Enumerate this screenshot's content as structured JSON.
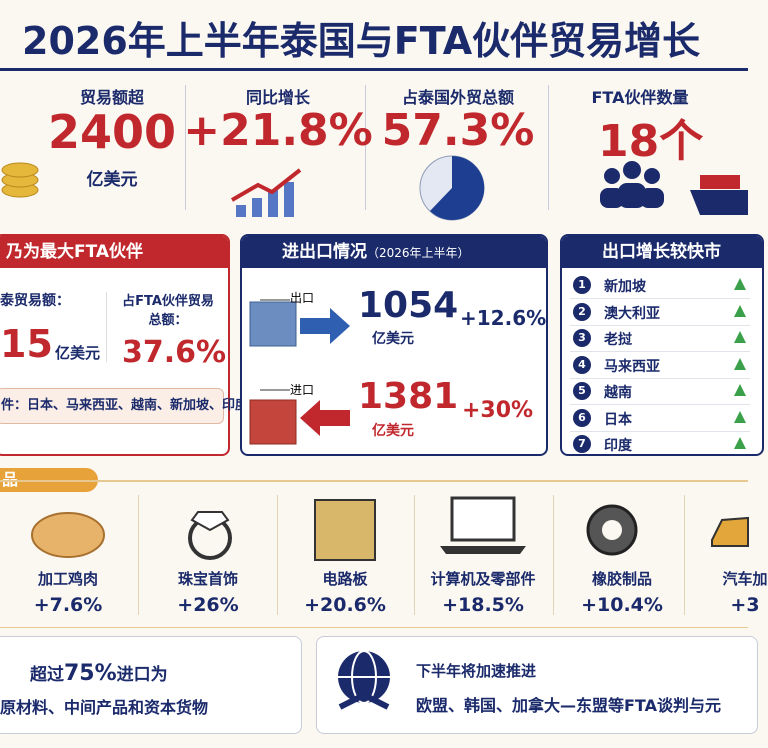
{
  "header": {
    "title": "2026年上半年泰国与FTA伙伴贸易增长"
  },
  "stats": [
    {
      "label": "贸易额超",
      "value": "2400",
      "unit": "亿美元"
    },
    {
      "label": "同比增长",
      "value": "+21.8%"
    },
    {
      "label": "占泰国外贸总额",
      "value": "57.3%"
    },
    {
      "label": "FTA伙伴数量",
      "value": "18个"
    }
  ],
  "partner_panel": {
    "title": "乃为最大FTA伙伴",
    "trade_label": "泰贸易额：",
    "trade_value": "15",
    "trade_unit": "亿美元",
    "share_label": "占FTA伙伴贸易总额：",
    "share_value": "37.6%",
    "footer": "件：日本、马来西亚、越南、新加坡、印度"
  },
  "trade_panel": {
    "title": "进出口情况",
    "subtitle": "（2026年上半年）",
    "export": {
      "label": "出口",
      "value": "1054",
      "unit": "亿美元",
      "growth": "+12.6%"
    },
    "import": {
      "label": "进口",
      "value": "1381",
      "unit": "亿美元",
      "growth": "+30%"
    }
  },
  "markets_panel": {
    "title": "出口增长较快市",
    "items": [
      {
        "rank": "1",
        "name": "新加坡"
      },
      {
        "rank": "2",
        "name": "澳大利亚"
      },
      {
        "rank": "3",
        "name": "老挝"
      },
      {
        "rank": "4",
        "name": "马来西亚"
      },
      {
        "rank": "5",
        "name": "越南"
      },
      {
        "rank": "6",
        "name": "日本"
      },
      {
        "rank": "7",
        "name": "印度"
      }
    ]
  },
  "products": {
    "title": "品",
    "items": [
      {
        "name": "加工鸡肉",
        "growth": "+7.6%"
      },
      {
        "name": "珠宝首饰",
        "growth": "+26%"
      },
      {
        "name": "电路板",
        "growth": "+20.6%"
      },
      {
        "name": "计算机及零部件",
        "growth": "+18.5%"
      },
      {
        "name": "橡胶制品",
        "growth": "+10.4%"
      },
      {
        "name": "汽车加",
        "growth": "+3"
      }
    ]
  },
  "footer": {
    "left_prefix": "超过",
    "left_highlight": "75%",
    "left_suffix": "进口为",
    "left_line2": "原材料、中间产品和资本货物",
    "right_line1": "下半年将加速推进",
    "right_line2": "欧盟、韩国、加拿大—东盟等FTA谈判与元"
  }
}
